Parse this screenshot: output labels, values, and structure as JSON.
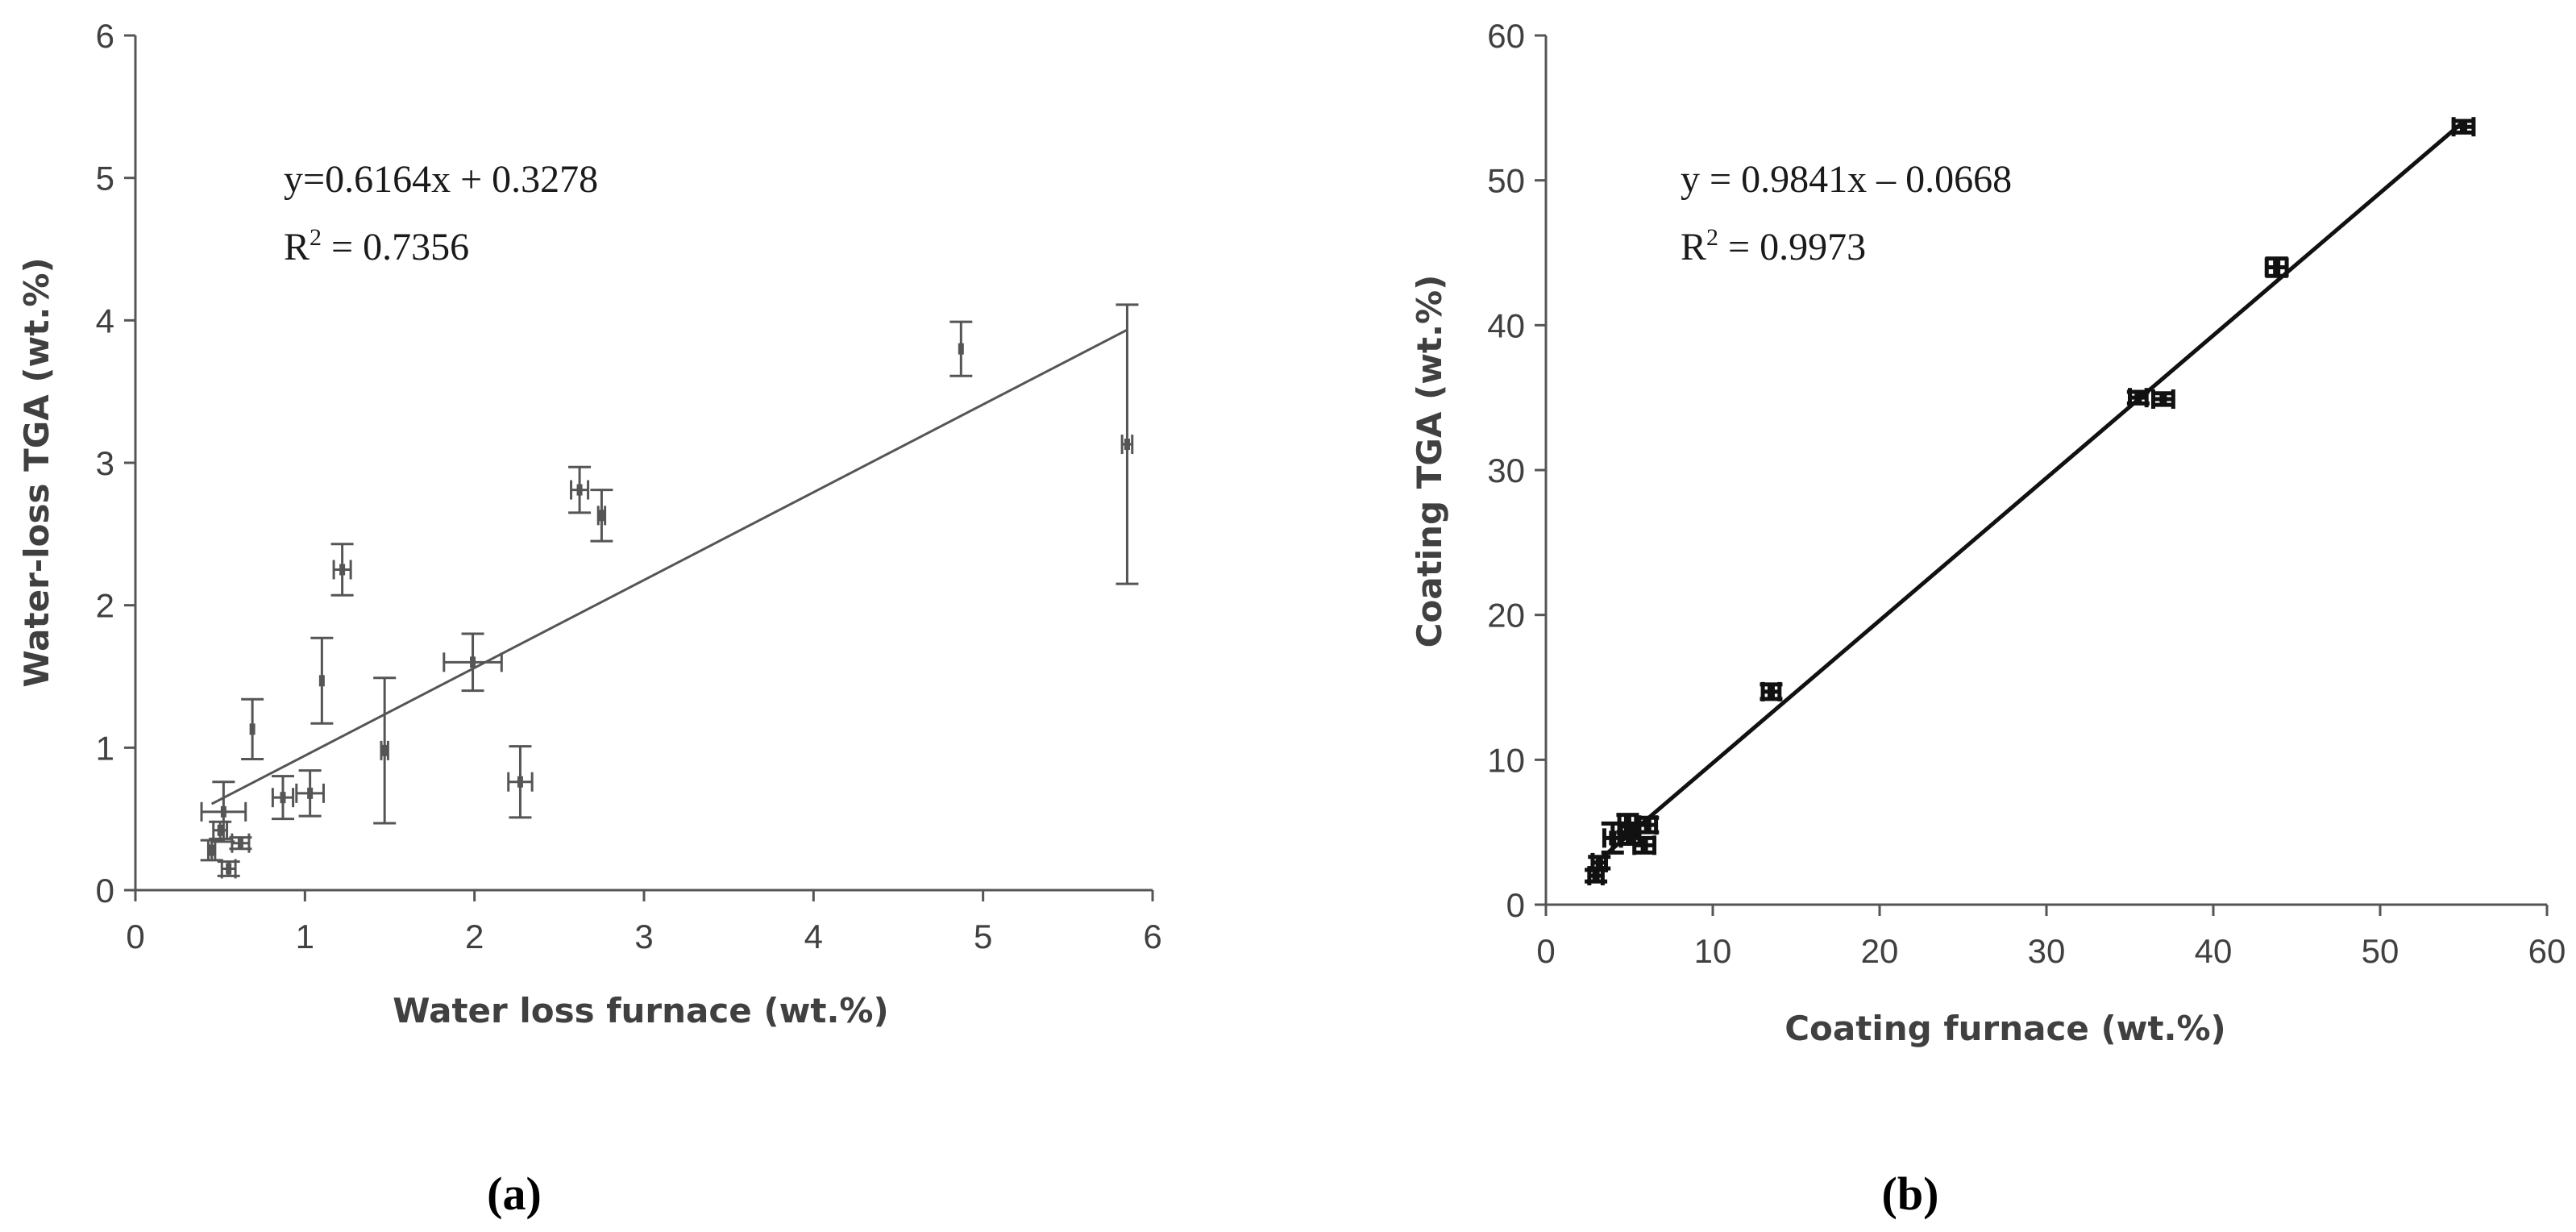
{
  "chart_data": [
    {
      "type": "scatter",
      "panel_label": "(a)",
      "xlabel": "Water loss furnace (wt.%)",
      "ylabel": "Water-loss TGA (wt.%)",
      "xlim": [
        0,
        6
      ],
      "ylim": [
        0,
        6
      ],
      "xticks": [
        "0",
        "1",
        "2",
        "3",
        "4",
        "5",
        "6"
      ],
      "yticks": [
        "0",
        "1",
        "2",
        "3",
        "4",
        "5",
        "6"
      ],
      "equation": "y=0.6164x + 0.3278",
      "r2_prefix": "R",
      "r2_sup": "2",
      "r2_suffix": " = 0.7356",
      "trendline": {
        "slope": 0.6164,
        "intercept": 0.3278,
        "x_range": [
          0.45,
          5.85
        ]
      },
      "points": [
        {
          "x": 0.45,
          "y": 0.28,
          "xerr": 0.02,
          "yerr": 0.07
        },
        {
          "x": 0.52,
          "y": 0.55,
          "xerr": 0.13,
          "yerr": 0.21
        },
        {
          "x": 0.5,
          "y": 0.42,
          "xerr": 0.04,
          "yerr": 0.06
        },
        {
          "x": 0.55,
          "y": 0.15,
          "xerr": 0.04,
          "yerr": 0.05
        },
        {
          "x": 0.62,
          "y": 0.33,
          "xerr": 0.05,
          "yerr": 0.04
        },
        {
          "x": 0.69,
          "y": 1.13,
          "xerr": 0.0,
          "yerr": 0.21
        },
        {
          "x": 0.87,
          "y": 0.65,
          "xerr": 0.06,
          "yerr": 0.15
        },
        {
          "x": 1.03,
          "y": 0.68,
          "xerr": 0.08,
          "yerr": 0.16
        },
        {
          "x": 1.1,
          "y": 1.47,
          "xerr": 0.0,
          "yerr": 0.3
        },
        {
          "x": 1.22,
          "y": 2.25,
          "xerr": 0.05,
          "yerr": 0.18
        },
        {
          "x": 1.47,
          "y": 0.98,
          "xerr": 0.02,
          "yerr": 0.51
        },
        {
          "x": 1.99,
          "y": 1.6,
          "xerr": 0.17,
          "yerr": 0.2
        },
        {
          "x": 2.27,
          "y": 0.76,
          "xerr": 0.07,
          "yerr": 0.25
        },
        {
          "x": 2.62,
          "y": 2.81,
          "xerr": 0.05,
          "yerr": 0.16
        },
        {
          "x": 2.75,
          "y": 2.63,
          "xerr": 0.02,
          "yerr": 0.18
        },
        {
          "x": 4.87,
          "y": 3.8,
          "xerr": 0.0,
          "yerr": 0.19
        },
        {
          "x": 5.85,
          "y": 3.13,
          "xerr": 0.03,
          "yerr": 0.98
        }
      ]
    },
    {
      "type": "scatter",
      "panel_label": "(b)",
      "xlabel": "Coating furnace (wt.%)",
      "ylabel": "Coating TGA (wt.%)",
      "xlim": [
        0,
        60
      ],
      "ylim": [
        0,
        60
      ],
      "xticks": [
        "0",
        "10",
        "20",
        "30",
        "40",
        "50",
        "60"
      ],
      "yticks": [
        "0",
        "10",
        "20",
        "30",
        "40",
        "50",
        "60"
      ],
      "equation": "y = 0.9841x – 0.0668",
      "r2_prefix": "R",
      "r2_sup": "2",
      "r2_suffix": " = 0.9973",
      "trendline": {
        "slope": 0.9841,
        "intercept": -0.0668,
        "x_range": [
          3.0,
          55.0
        ]
      },
      "points": [
        {
          "x": 3.0,
          "y": 2.0,
          "xerr": 0.4,
          "yerr": 0.4
        },
        {
          "x": 3.2,
          "y": 2.9,
          "xerr": 0.4,
          "yerr": 0.4
        },
        {
          "x": 4.0,
          "y": 4.6,
          "xerr": 0.5,
          "yerr": 1.0
        },
        {
          "x": 4.9,
          "y": 5.6,
          "xerr": 0.5,
          "yerr": 0.6
        },
        {
          "x": 5.0,
          "y": 4.8,
          "xerr": 0.6,
          "yerr": 0.6
        },
        {
          "x": 5.9,
          "y": 4.1,
          "xerr": 0.6,
          "yerr": 0.5
        },
        {
          "x": 6.1,
          "y": 5.5,
          "xerr": 0.5,
          "yerr": 0.5
        },
        {
          "x": 13.5,
          "y": 14.7,
          "xerr": 0.5,
          "yerr": 0.5
        },
        {
          "x": 35.5,
          "y": 35.0,
          "xerr": 0.5,
          "yerr": 0.4
        },
        {
          "x": 37.0,
          "y": 34.9,
          "xerr": 0.6,
          "yerr": 0.4
        },
        {
          "x": 43.8,
          "y": 44.0,
          "xerr": 0.6,
          "yerr": 0.6
        },
        {
          "x": 55.0,
          "y": 53.7,
          "xerr": 0.6,
          "yerr": 0.4
        }
      ]
    }
  ]
}
